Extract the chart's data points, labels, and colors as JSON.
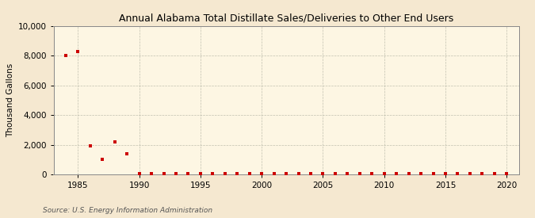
{
  "title": "Annual Alabama Total Distillate Sales/Deliveries to Other End Users",
  "ylabel": "Thousand Gallons",
  "source": "Source: U.S. Energy Information Administration",
  "figure_facecolor": "#f5e8d0",
  "axes_facecolor": "#fdf6e3",
  "marker_color": "#cc0000",
  "marker": "s",
  "marker_size": 3.5,
  "xlim": [
    1983,
    2021
  ],
  "ylim": [
    0,
    10000
  ],
  "yticks": [
    0,
    2000,
    4000,
    6000,
    8000,
    10000
  ],
  "xticks": [
    1985,
    1990,
    1995,
    2000,
    2005,
    2010,
    2015,
    2020
  ],
  "data": {
    "1984": 8000,
    "1985": 8300,
    "1986": 1950,
    "1987": 1000,
    "1988": 2200,
    "1989": 1400,
    "1990": 30,
    "1991": 30,
    "1992": 30,
    "1993": 60,
    "1994": 30,
    "1995": 30,
    "1996": 30,
    "1997": 30,
    "1998": 60,
    "1999": 30,
    "2000": 30,
    "2001": 30,
    "2002": 30,
    "2003": 30,
    "2004": 30,
    "2005": 60,
    "2006": 30,
    "2007": 30,
    "2008": 30,
    "2009": 30,
    "2010": 30,
    "2011": 30,
    "2012": 30,
    "2013": 30,
    "2014": 30,
    "2015": 30,
    "2016": 30,
    "2017": 30,
    "2018": 30,
    "2019": 30,
    "2020": 30
  }
}
